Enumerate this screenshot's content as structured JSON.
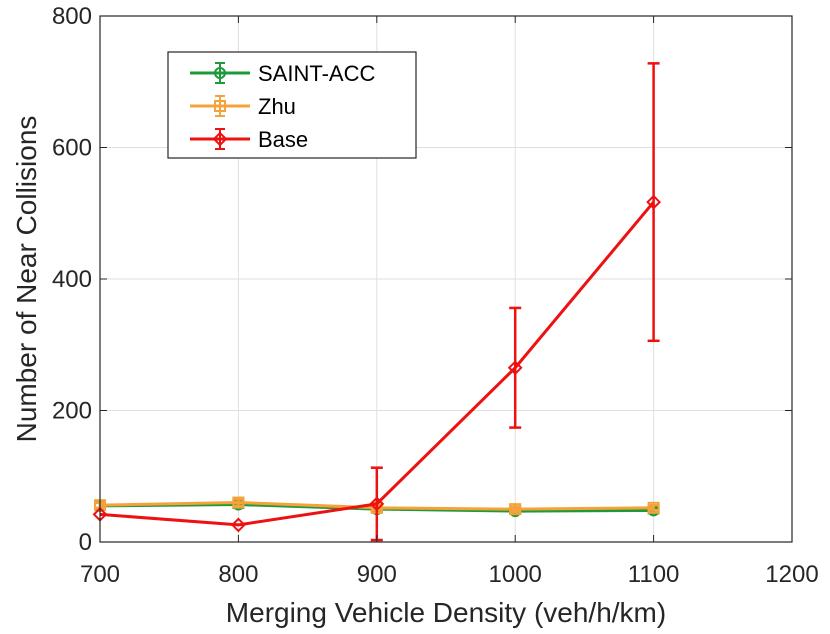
{
  "chart_data": {
    "type": "line",
    "title": "",
    "xlabel": "Merging Vehicle Density (veh/h/km)",
    "ylabel": "Number of Near Collisions",
    "xlim": [
      700,
      1200
    ],
    "ylim": [
      0,
      800
    ],
    "xticks": [
      700,
      800,
      900,
      1000,
      1100,
      1200
    ],
    "yticks": [
      0,
      200,
      400,
      600,
      800
    ],
    "grid": true,
    "legend_position": "top-left",
    "x": [
      700,
      800,
      900,
      1000,
      1100
    ],
    "series": [
      {
        "name": "SAINT-ACC",
        "color": "#1f9a3a",
        "marker": "circle",
        "values": [
          55,
          57,
          50,
          47,
          48
        ],
        "err_low": [
          5,
          5,
          4,
          4,
          4
        ],
        "err_high": [
          5,
          5,
          4,
          4,
          4
        ]
      },
      {
        "name": "Zhu",
        "color": "#f5a23a",
        "marker": "square",
        "values": [
          56,
          60,
          52,
          50,
          52
        ],
        "err_low": [
          4,
          5,
          4,
          4,
          4
        ],
        "err_high": [
          4,
          5,
          4,
          4,
          4
        ]
      },
      {
        "name": "Base",
        "color": "#ee1111",
        "marker": "diamond",
        "values": [
          42,
          26,
          58,
          265,
          517
        ],
        "err_low": [
          0,
          0,
          55,
          91,
          211
        ],
        "err_high": [
          0,
          0,
          55,
          91,
          211
        ]
      }
    ]
  }
}
